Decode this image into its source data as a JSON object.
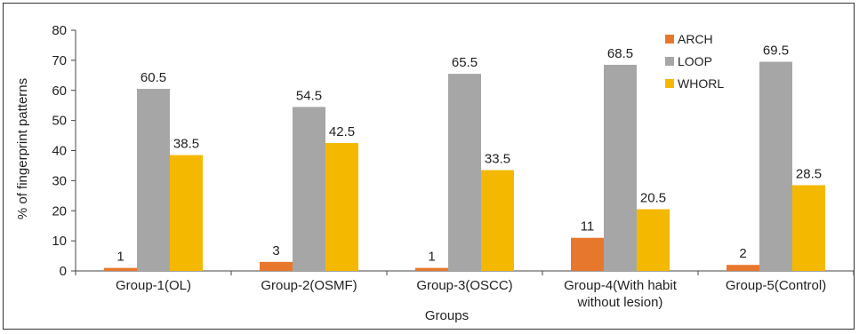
{
  "chart_data": {
    "type": "bar",
    "categories": [
      "Group-1(OL)",
      "Group-2(OSMF)",
      "Group-3(OSCC)",
      "Group-4(With habit\nwithout lesion)",
      "Group-5(Control)"
    ],
    "series": [
      {
        "name": "ARCH",
        "color": "#e8772e",
        "values": [
          1,
          3,
          1,
          11,
          2
        ]
      },
      {
        "name": "LOOP",
        "color": "#a6a6a6",
        "values": [
          60.5,
          54.5,
          65.5,
          68.5,
          69.5
        ]
      },
      {
        "name": "WHORL",
        "color": "#f5b800",
        "values": [
          38.5,
          42.5,
          33.5,
          20.5,
          28.5
        ]
      }
    ],
    "xlabel": "Groups",
    "ylabel": "% of fingerprint patterns",
    "ylim": [
      0,
      80
    ],
    "yticks": [
      0,
      10,
      20,
      30,
      40,
      50,
      60,
      70,
      80
    ],
    "grid": false,
    "legend_position": "top-right"
  }
}
